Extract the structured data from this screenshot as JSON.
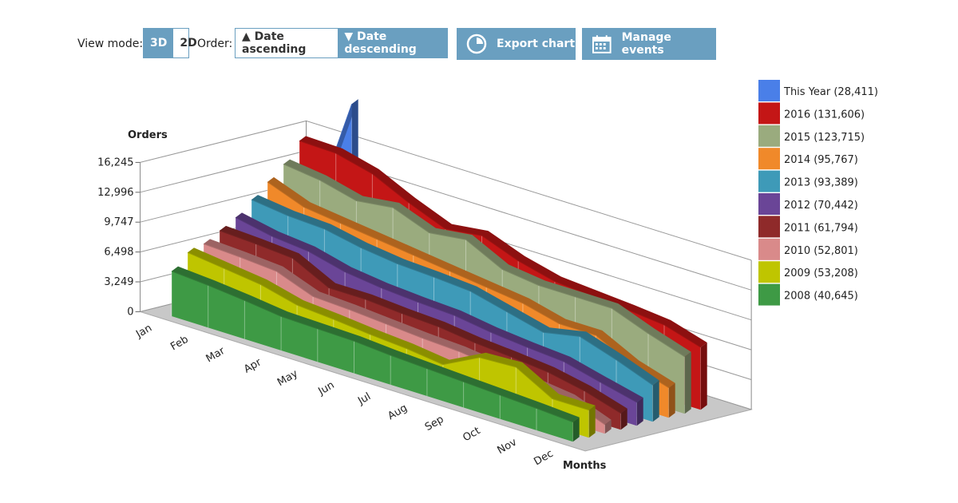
{
  "toolbar": {
    "view_mode_label": "View mode:",
    "view_3d": "3D",
    "view_2d": "2D",
    "order_label": "Order:",
    "order_asc": "▲ Date ascending",
    "order_desc": "▼ Date descending",
    "export": "Export chart",
    "manage": "Manage events"
  },
  "chart_data": {
    "type": "area3d",
    "y_title": "Orders",
    "x_title": "Months",
    "categories": [
      "Jan",
      "Feb",
      "Mar",
      "Apr",
      "May",
      "Jun",
      "Jul",
      "Aug",
      "Sep",
      "Oct",
      "Nov",
      "Dec"
    ],
    "ylim": [
      0,
      16245
    ],
    "yticks": [
      0,
      {
        "value": 3249,
        "label": "3,249"
      },
      {
        "value": 6498,
        "label": "6,498"
      },
      {
        "value": 9747,
        "label": "9,747"
      },
      {
        "value": 12996,
        "label": "12,996"
      },
      {
        "value": 16245,
        "label": "16,245"
      }
    ],
    "grid": true,
    "series": [
      {
        "name": "This Year (28,411)",
        "color": "#4a7fe8",
        "values": [
          8000,
          20411,
          null,
          null,
          null,
          null,
          null,
          null,
          null,
          null,
          null,
          null
        ]
      },
      {
        "name": "2016 (131,606)",
        "color": "#c41616",
        "values": [
          15600,
          15500,
          14500,
          12600,
          11000,
          11500,
          10000,
          9000,
          8700,
          8400,
          8000,
          6806
        ]
      },
      {
        "name": "2015 (123,715)",
        "color": "#9aab7e",
        "values": [
          13500,
          13000,
          12000,
          12500,
          11000,
          11500,
          9500,
          9000,
          9000,
          9000,
          7500,
          6215
        ]
      },
      {
        "name": "2014 (95,767)",
        "color": "#f0892a",
        "values": [
          12000,
          10500,
          10000,
          9500,
          9000,
          8500,
          8000,
          7500,
          6500,
          6500,
          4500,
          3267
        ]
      },
      {
        "name": "2013 (93,389)",
        "color": "#3e9ab8",
        "values": [
          10500,
          10000,
          9800,
          9000,
          8500,
          8300,
          8000,
          7000,
          6000,
          6800,
          5500,
          3989
        ]
      },
      {
        "name": "2012 (70,442)",
        "color": "#6a4597",
        "values": [
          9000,
          8200,
          7800,
          6800,
          6300,
          6000,
          5800,
          5200,
          4800,
          4500,
          3500,
          2542
        ]
      },
      {
        "name": "2011 (61,794)",
        "color": "#8f2a2a",
        "values": [
          8000,
          7800,
          7500,
          5500,
          5500,
          5200,
          5000,
          4500,
          4200,
          3800,
          3000,
          1794
        ]
      },
      {
        "name": "2010 (52,801)",
        "color": "#d98a8a",
        "values": [
          7000,
          6800,
          6500,
          5000,
          4800,
          4500,
          4200,
          4000,
          3500,
          3000,
          2500,
          1001
        ]
      },
      {
        "name": "2009 (53,208)",
        "color": "#bfc500",
        "values": [
          6500,
          6000,
          5500,
          4500,
          4200,
          3800,
          3500,
          3000,
          5000,
          5200,
          3000,
          3008
        ]
      },
      {
        "name": "2008 (40,645)",
        "color": "#3e9a45",
        "values": [
          4900,
          4600,
          4200,
          3700,
          3600,
          3500,
          3200,
          3000,
          2800,
          2600,
          2400,
          2145
        ]
      }
    ]
  }
}
